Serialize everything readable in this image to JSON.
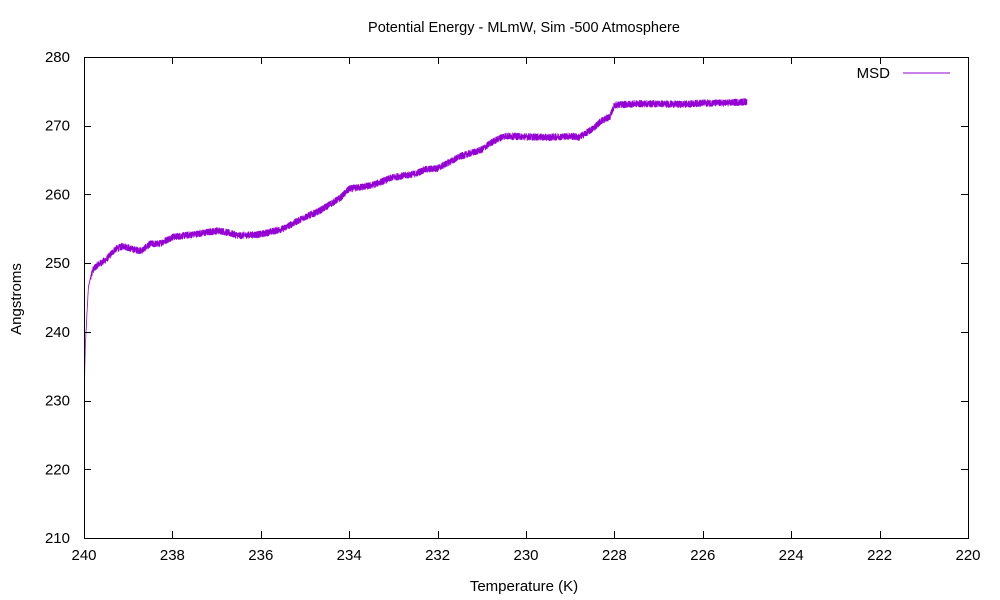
{
  "chart_data": {
    "type": "line",
    "title": "Potential Energy - MLmW, Sim -500 Atmosphere",
    "xlabel": "Temperature (K)",
    "ylabel": "Angstroms",
    "xlim": [
      240,
      220
    ],
    "ylim": [
      210,
      280
    ],
    "x_reversed": true,
    "xticks": [
      240,
      238,
      236,
      234,
      232,
      230,
      228,
      226,
      224,
      222,
      220
    ],
    "yticks": [
      210,
      220,
      230,
      240,
      250,
      260,
      270,
      280
    ],
    "grid": false,
    "legend_position": "top-right",
    "series": [
      {
        "name": "MSD",
        "color": "#9400d3",
        "noise_band": 1.0,
        "x": [
          240.0,
          239.97,
          239.93,
          239.9,
          239.85,
          239.8,
          239.7,
          239.5,
          239.3,
          239.1,
          238.9,
          238.7,
          238.5,
          238.3,
          238.0,
          237.5,
          237.0,
          236.9,
          236.5,
          236.0,
          235.5,
          235.0,
          234.7,
          234.2,
          234.0,
          233.5,
          233.0,
          232.5,
          232.3,
          232.0,
          231.5,
          231.0,
          230.8,
          230.5,
          230.0,
          229.5,
          229.0,
          228.8,
          228.5,
          228.3,
          228.1,
          228.0,
          227.5,
          227.0,
          226.5,
          226.0,
          225.5,
          225.0
        ],
        "values": [
          229.5,
          238.0,
          243.0,
          246.5,
          248.0,
          249.0,
          249.7,
          250.5,
          252.0,
          252.5,
          252.0,
          251.8,
          252.8,
          252.8,
          253.8,
          254.2,
          254.7,
          254.7,
          254.0,
          254.2,
          255.0,
          256.7,
          257.5,
          259.5,
          260.8,
          261.3,
          262.5,
          263.0,
          263.6,
          263.8,
          265.5,
          266.5,
          267.5,
          268.5,
          268.4,
          268.3,
          268.5,
          268.3,
          269.5,
          270.7,
          271.3,
          273.0,
          273.2,
          273.2,
          273.1,
          273.3,
          273.3,
          273.5
        ]
      }
    ]
  }
}
